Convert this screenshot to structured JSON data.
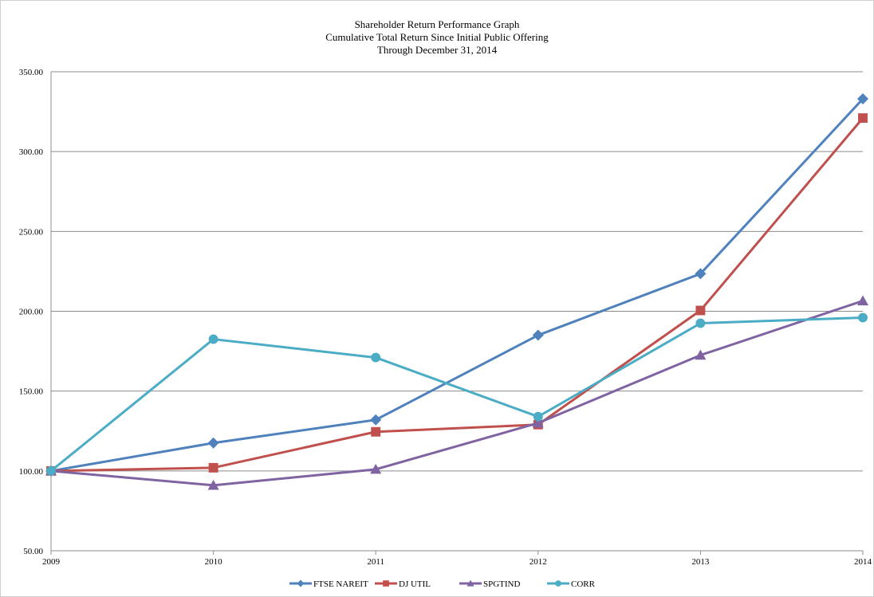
{
  "chart_data": {
    "type": "line",
    "title_lines": [
      "Shareholder Return Performance Graph",
      "Cumulative Total Return Since Initial Public Offering",
      "Through December 31, 2014"
    ],
    "categories": [
      "2009",
      "2010",
      "2011",
      "2012",
      "2013",
      "2014"
    ],
    "y_ticks": [
      "50.00",
      "100.00",
      "150.00",
      "200.00",
      "250.00",
      "300.00",
      "350.00"
    ],
    "ylim": [
      50,
      350
    ],
    "grid": "horizontal",
    "legend_position": "bottom",
    "series": [
      {
        "name": "FTSE NAREIT",
        "color": "#4f81bd",
        "marker": "diamond",
        "values": [
          100.0,
          117.5,
          132.0,
          185.0,
          223.5,
          333.0
        ]
      },
      {
        "name": "DJ UTIL",
        "color": "#c0504d",
        "marker": "square",
        "values": [
          100.0,
          102.0,
          124.5,
          129.0,
          200.5,
          321.0
        ]
      },
      {
        "name": "SPGTIND",
        "color": "#8064a2",
        "marker": "triangle",
        "values": [
          100.0,
          91.0,
          101.0,
          130.0,
          172.5,
          206.5
        ]
      },
      {
        "name": "CORR",
        "color": "#4bacc6",
        "marker": "circle",
        "values": [
          100.0,
          182.5,
          171.0,
          134.0,
          192.5,
          196.0
        ]
      }
    ]
  }
}
